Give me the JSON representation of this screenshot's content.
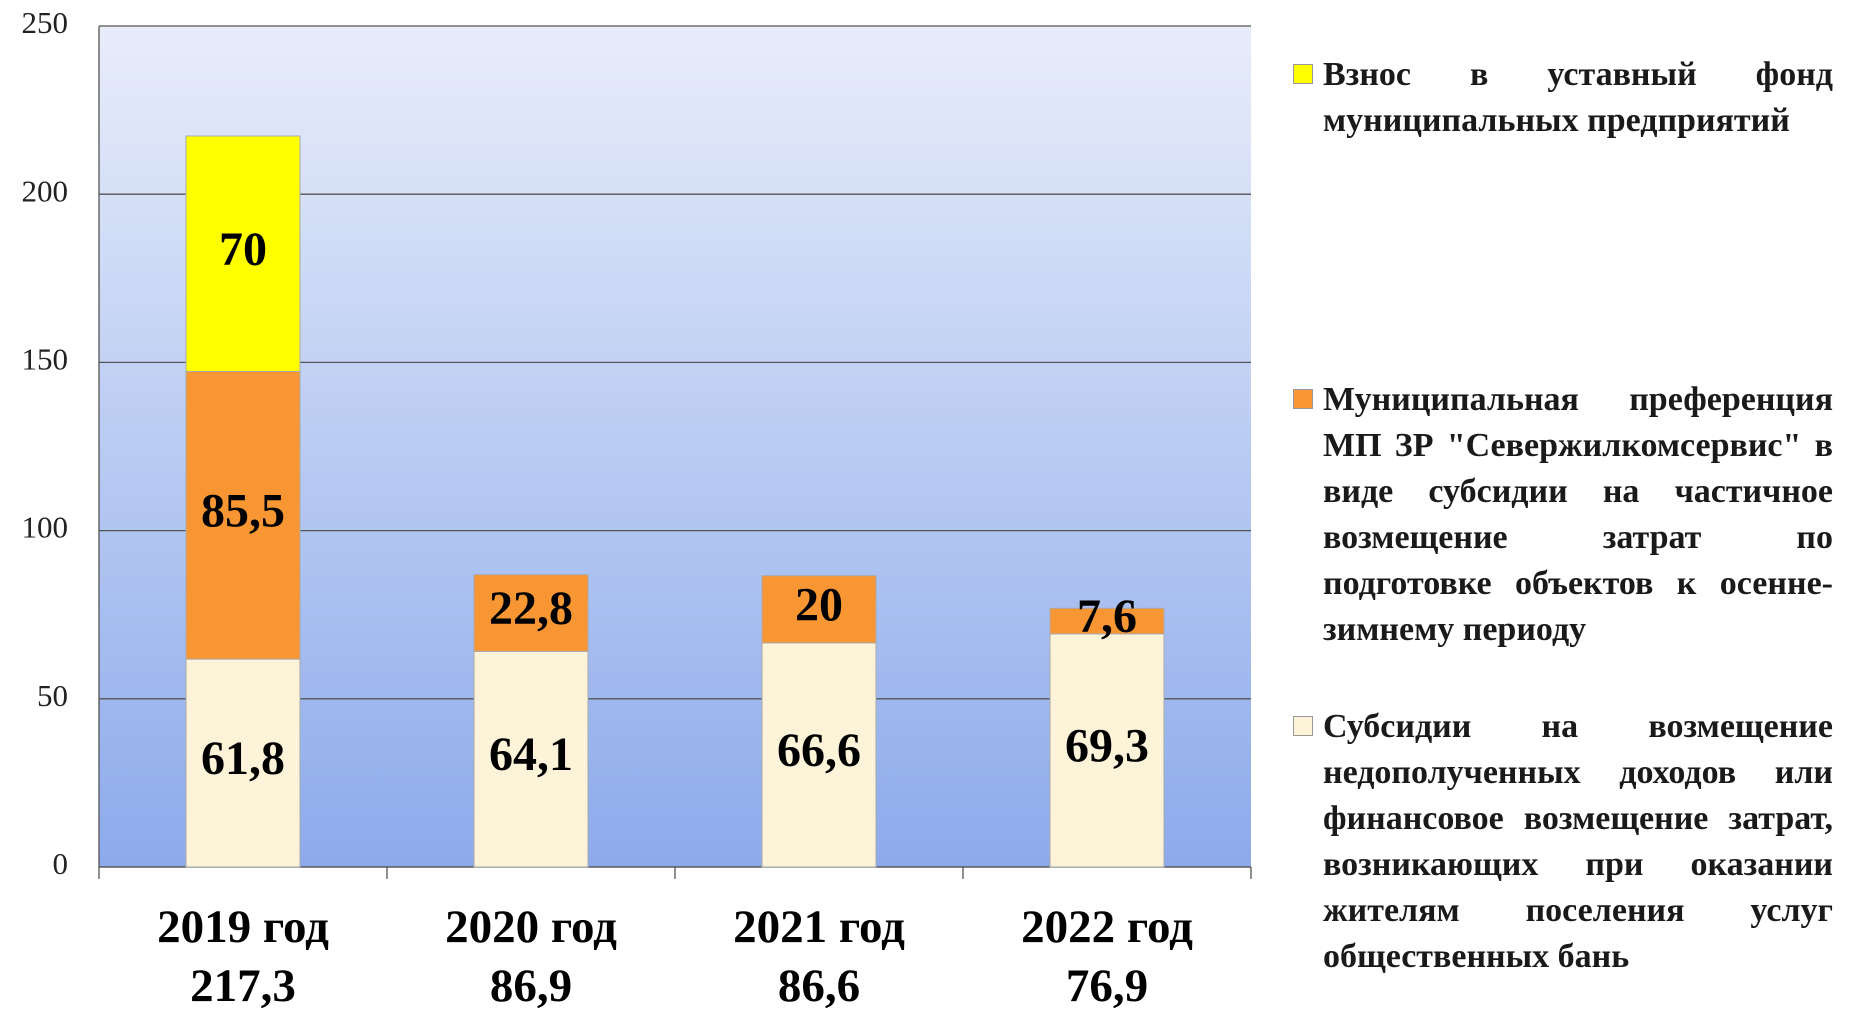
{
  "chart_data": {
    "type": "stacked_bar",
    "categories": [
      "2019 год",
      "2020 год",
      "2021 год",
      "2022 год"
    ],
    "totals": [
      217.3,
      86.9,
      86.6,
      76.9
    ],
    "total_labels": [
      "217,3",
      "86,9",
      "86,6",
      "76,9"
    ],
    "series": [
      {
        "name": "Субсидии на возмещение недополученных доходов или финансовое возмещение затрат, возникающих при оказании жителям поселения услуг общественных бань",
        "color": "#fdf3d9",
        "values": [
          61.8,
          64.1,
          66.6,
          69.3
        ],
        "value_labels": [
          "61,8",
          "64,1",
          "66,6",
          "69,3"
        ]
      },
      {
        "name": "Муниципальная преференция МП ЗР \"Севержилкомсервис\" в виде субсидии на частичное возмещение затрат по подготовке объектов к осенне-зимнему периоду",
        "color": "#f79633",
        "values": [
          85.5,
          22.8,
          20,
          7.6
        ],
        "value_labels": [
          "85,5",
          "22,8",
          "20",
          "7,6"
        ]
      },
      {
        "name": "Взнос в уставный фонд муниципальных предприятий",
        "color": "#ffff00",
        "values": [
          70,
          null,
          null,
          null
        ],
        "value_labels": [
          "70",
          null,
          null,
          null
        ]
      }
    ],
    "ylim": [
      0,
      250
    ],
    "yticks": [
      0,
      50,
      100,
      150,
      200,
      250
    ],
    "grid": true
  }
}
